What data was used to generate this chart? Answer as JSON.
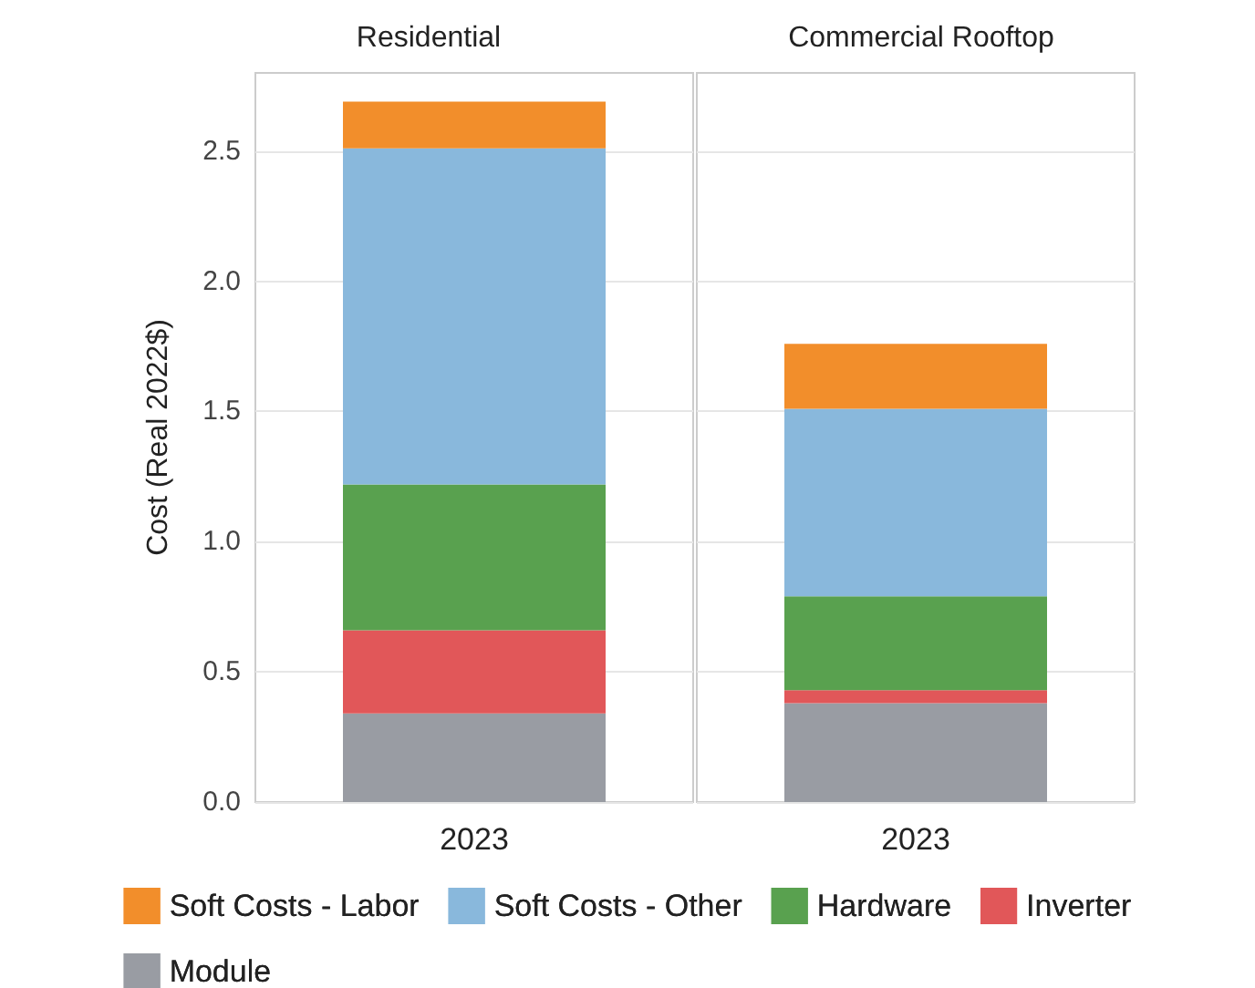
{
  "chart_data": [
    {
      "type": "bar",
      "title": "Residential",
      "ylabel": "Cost (Real 2022$)",
      "categories": [
        "2023"
      ],
      "stacked": true,
      "ylim": [
        0,
        2.8
      ],
      "yticks": [
        {
          "value": 0,
          "label": "0.0"
        },
        {
          "value": 0.5,
          "label": "0.5"
        },
        {
          "value": 1,
          "label": "1.0"
        },
        {
          "value": 1.5,
          "label": "1.5"
        },
        {
          "value": 2,
          "label": "2.0"
        },
        {
          "value": 2.5,
          "label": "2.5"
        }
      ],
      "grid": "y",
      "legend": "bottom",
      "series": [
        {
          "name": "Module",
          "color": "#999ca3",
          "values": [
            0.34
          ]
        },
        {
          "name": "Inverter",
          "color": "#e15759",
          "values": [
            0.32
          ]
        },
        {
          "name": "Hardware",
          "color": "#59a14f",
          "values": [
            0.56
          ]
        },
        {
          "name": "Soft Costs - Other",
          "color": "#89b8dc",
          "values": [
            1.29
          ]
        },
        {
          "name": "Soft Costs - Labor",
          "color": "#f28e2b",
          "values": [
            0.18
          ]
        }
      ]
    },
    {
      "type": "bar",
      "title": "Commercial Rooftop",
      "categories": [
        "2023"
      ],
      "stacked": true,
      "ylim": [
        0,
        2.8
      ],
      "yticks": [
        0,
        0.5,
        1,
        1.5,
        2,
        2.5
      ],
      "grid": "y",
      "tick_labels": "x",
      "legend": "bottom",
      "series": [
        {
          "name": "Module",
          "color": "#999ca3",
          "values": [
            0.38
          ]
        },
        {
          "name": "Inverter",
          "color": "#e15759",
          "values": [
            0.05
          ]
        },
        {
          "name": "Hardware",
          "color": "#59a14f",
          "values": [
            0.36
          ]
        },
        {
          "name": "Soft Costs - Other",
          "color": "#89b8dc",
          "values": [
            0.72
          ]
        },
        {
          "name": "Soft Costs - Labor",
          "color": "#f28e2b",
          "values": [
            0.25
          ]
        }
      ]
    }
  ]
}
